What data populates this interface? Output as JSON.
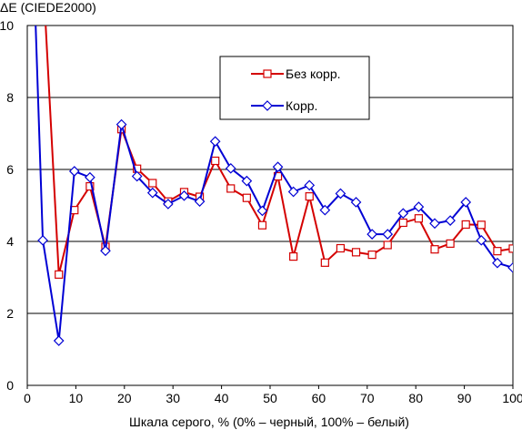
{
  "chart_data": {
    "type": "line",
    "title": "",
    "ylabel": "ΔE (CIEDE2000)",
    "xlabel": "Шкала серого, % (0% – черный, 100% – белый)",
    "xlim": [
      0,
      100
    ],
    "ylim": [
      0,
      10
    ],
    "x_ticks": [
      "0",
      "10",
      "20",
      "30",
      "40",
      "50",
      "60",
      "70",
      "80",
      "90",
      "100"
    ],
    "y_ticks": [
      "0",
      "2",
      "4",
      "6",
      "8",
      "10"
    ],
    "grid": "horizontal",
    "legend_position": "top-right",
    "series": [
      {
        "name": "Без корр.",
        "color": "#d40000",
        "marker": "square",
        "x": [
          3.2,
          6.5,
          9.7,
          12.9,
          16.1,
          19.4,
          22.6,
          25.8,
          29.0,
          32.3,
          35.5,
          38.7,
          41.9,
          45.2,
          48.4,
          51.6,
          54.8,
          58.1,
          61.3,
          64.5,
          67.7,
          71.0,
          74.2,
          77.4,
          80.6,
          83.9,
          87.1,
          90.3,
          93.5,
          96.8,
          100.0
        ],
        "y": [
          11.5,
          3.08,
          4.87,
          5.53,
          3.85,
          7.12,
          6.02,
          5.62,
          5.11,
          5.37,
          5.24,
          6.24,
          5.47,
          5.21,
          4.45,
          5.81,
          3.58,
          5.25,
          3.41,
          3.81,
          3.7,
          3.63,
          3.9,
          4.52,
          4.64,
          3.78,
          3.94,
          4.47,
          4.46,
          3.73,
          3.8
        ]
      },
      {
        "name": "Корр.",
        "color": "#0000d4",
        "marker": "diamond",
        "x": [
          1.6,
          3.2,
          6.5,
          9.7,
          12.9,
          16.1,
          19.4,
          22.6,
          25.8,
          29.0,
          32.3,
          35.5,
          38.7,
          41.9,
          45.2,
          48.4,
          51.6,
          54.8,
          58.1,
          61.3,
          64.5,
          67.7,
          71.0,
          74.2,
          77.4,
          80.6,
          83.9,
          87.1,
          90.3,
          93.5,
          96.8,
          100.0
        ],
        "y": [
          10.5,
          4.03,
          1.24,
          5.95,
          5.78,
          3.74,
          7.25,
          5.81,
          5.35,
          5.04,
          5.27,
          5.11,
          6.78,
          6.03,
          5.68,
          4.85,
          6.07,
          5.38,
          5.56,
          4.87,
          5.33,
          5.09,
          4.2,
          4.2,
          4.78,
          4.96,
          4.5,
          4.58,
          5.09,
          4.03,
          3.4,
          3.27
        ]
      }
    ]
  }
}
